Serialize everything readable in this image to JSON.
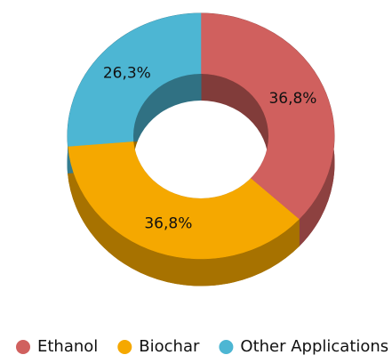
{
  "chart_data": {
    "type": "donut",
    "categories": [
      "Ethanol",
      "Biochar",
      "Other Applications"
    ],
    "values": [
      36.8,
      36.8,
      26.3
    ],
    "value_labels": [
      "36,8%",
      "36,8%",
      "26,3%"
    ],
    "colors": [
      "#d0605e",
      "#f5a800",
      "#4db6d3"
    ],
    "legend": "bottom"
  }
}
